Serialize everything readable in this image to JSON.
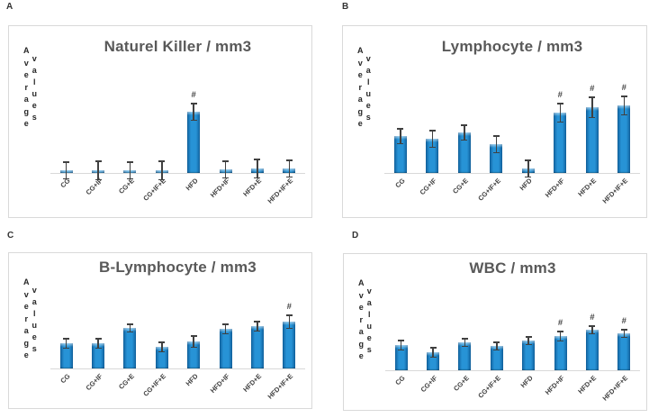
{
  "figure": {
    "panel_labels": [
      "A",
      "B",
      "C",
      "D"
    ],
    "ylabel_words": [
      "Average",
      "values"
    ],
    "hash_marker": "#",
    "colors": {
      "bar_light": "#2793d6",
      "bar_dark": "#11629f",
      "error": "#404040",
      "panel_border": "#d9d9d9",
      "axis_line": "#d9d9d9",
      "title_text": "#595959",
      "tick_label_text": "#3f3f3f"
    }
  },
  "chart_data": [
    {
      "type": "bar",
      "panel_label": "A",
      "title": "Naturel Killer / mm3",
      "ylabel": "Average values",
      "categories": [
        "CG",
        "CG+IF",
        "CG+E",
        "CG+IF+E",
        "HFD",
        "HFD+IF",
        "HFD+E",
        "HFD+IF+E"
      ],
      "values": [
        3,
        3,
        3,
        3,
        68,
        4,
        5,
        5
      ],
      "errors": [
        9,
        10,
        9,
        10,
        9,
        9,
        10,
        9
      ],
      "significance": [
        "",
        "",
        "",
        "",
        "#",
        "",
        "",
        ""
      ],
      "ylim": [
        0,
        118
      ],
      "grid": false,
      "legend": null,
      "y_tick_labels_visible": false
    },
    {
      "type": "bar",
      "panel_label": "B",
      "title": "Lymphocyte / mm3",
      "ylabel": "Average values",
      "categories": [
        "CG",
        "CG+IF",
        "CG+E",
        "CG+IF+E",
        "HFD",
        "HFD+IF",
        "HFD+E",
        "HFD+IF+E"
      ],
      "values": [
        41,
        38,
        45,
        32,
        5,
        67,
        73,
        75
      ],
      "errors": [
        8,
        9,
        8,
        9,
        9,
        10,
        11,
        10
      ],
      "significance": [
        "",
        "",
        "",
        "",
        "",
        "#",
        "#",
        "#"
      ],
      "ylim": [
        0,
        118
      ],
      "grid": false,
      "legend": null,
      "y_tick_labels_visible": false
    },
    {
      "type": "bar",
      "panel_label": "C",
      "title": "B-Lymphocyte / mm3",
      "ylabel": "Average values",
      "categories": [
        "CG",
        "CG+IF",
        "CG+E",
        "CG+IF+E",
        "HFD",
        "HFD+IF",
        "HFD+E",
        "HFD+IF+E"
      ],
      "values": [
        28,
        28,
        45,
        24,
        30,
        44,
        47,
        52
      ],
      "errors": [
        5,
        5,
        4,
        5,
        6,
        5,
        5,
        7
      ],
      "significance": [
        "",
        "",
        "",
        "",
        "",
        "",
        "",
        "#"
      ],
      "ylim": [
        0,
        92
      ],
      "grid": false,
      "legend": null,
      "y_tick_labels_visible": false
    },
    {
      "type": "bar",
      "panel_label": "D",
      "title": "WBC / mm3",
      "ylabel": "Average values",
      "categories": [
        "CG",
        "CG+IF",
        "CG+E",
        "CG+IF+E",
        "HFD",
        "HFD+IF",
        "HFD+E",
        "HFD+IF+E"
      ],
      "values": [
        28,
        20,
        31,
        27,
        33,
        38,
        45,
        41
      ],
      "errors": [
        5,
        5,
        4,
        4,
        4,
        5,
        4,
        4
      ],
      "significance": [
        "",
        "",
        "",
        "",
        "",
        "#",
        "#",
        "#"
      ],
      "ylim": [
        0,
        92
      ],
      "grid": false,
      "legend": null,
      "y_tick_labels_visible": false
    }
  ]
}
